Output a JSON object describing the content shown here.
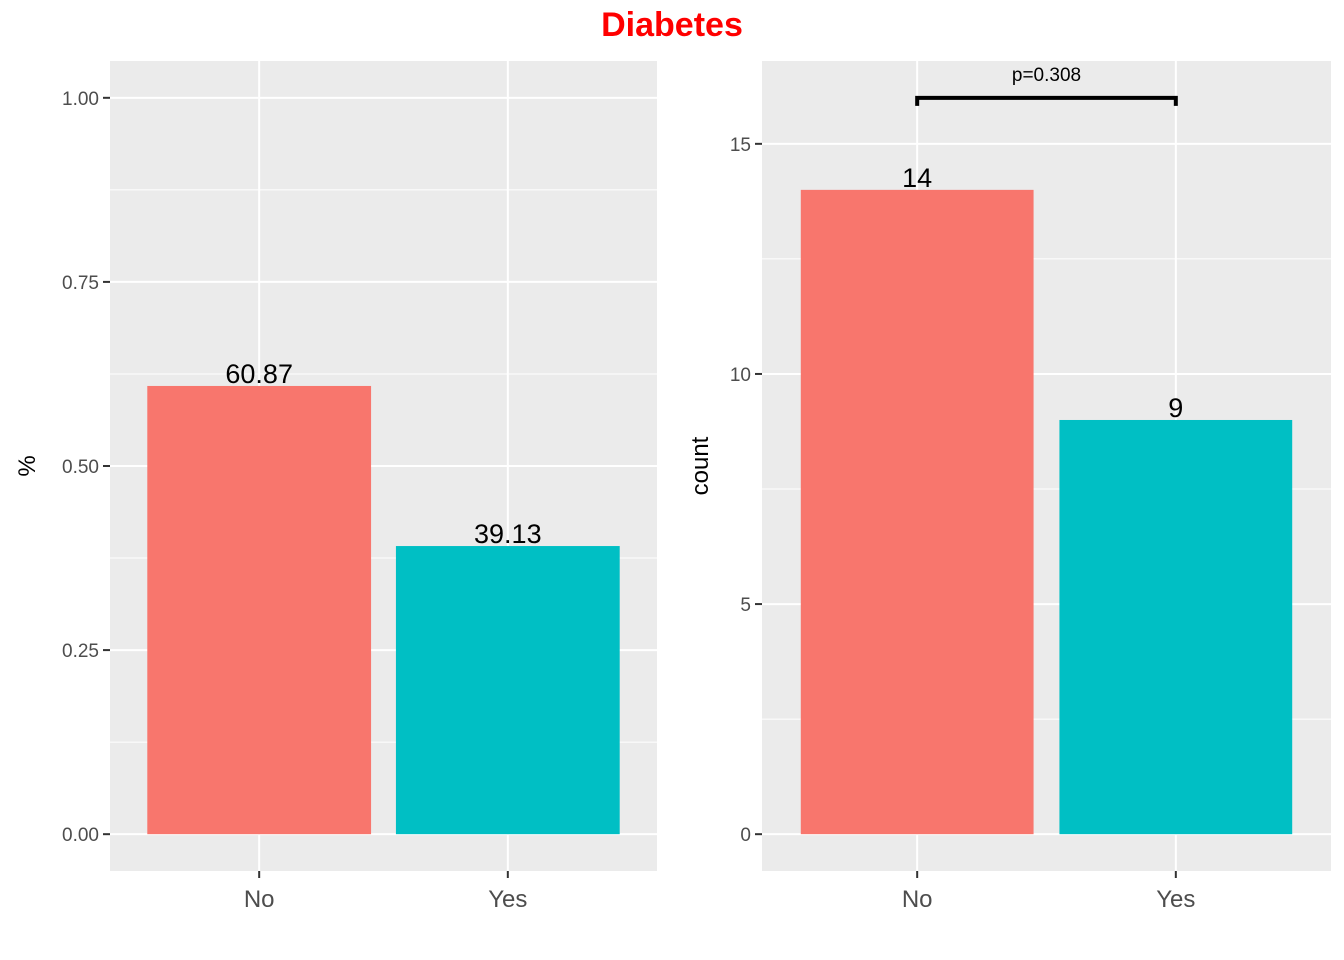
{
  "title": "Diabetes",
  "title_color": "#FF0000",
  "chart_data": [
    {
      "type": "bar",
      "categories": [
        "No",
        "Yes"
      ],
      "values": [
        0.6087,
        0.3913
      ],
      "value_labels": [
        "60.87",
        "39.13"
      ],
      "colors": [
        "#F8766D",
        "#00BFC4"
      ],
      "ylabel": "%",
      "xlabel": "",
      "ylim": [
        0,
        1.0
      ],
      "yticks": [
        0.0,
        0.25,
        0.5,
        0.75,
        1.0
      ],
      "ytick_labels": [
        "0.00",
        "0.25",
        "0.50",
        "0.75",
        "1.00"
      ],
      "grid": true,
      "panel_bg": "#EBEBEB"
    },
    {
      "type": "bar",
      "categories": [
        "No",
        "Yes"
      ],
      "values": [
        14,
        9
      ],
      "value_labels": [
        "14",
        "9"
      ],
      "colors": [
        "#F8766D",
        "#00BFC4"
      ],
      "ylabel": "count",
      "xlabel": "",
      "ylim": [
        0,
        16
      ],
      "yticks": [
        0,
        5,
        10,
        15
      ],
      "ytick_labels": [
        "0",
        "5",
        "10",
        "15"
      ],
      "grid": true,
      "panel_bg": "#EBEBEB",
      "annotation": {
        "text": "p=0.308",
        "from": "No",
        "to": "Yes",
        "y": 16
      }
    }
  ]
}
